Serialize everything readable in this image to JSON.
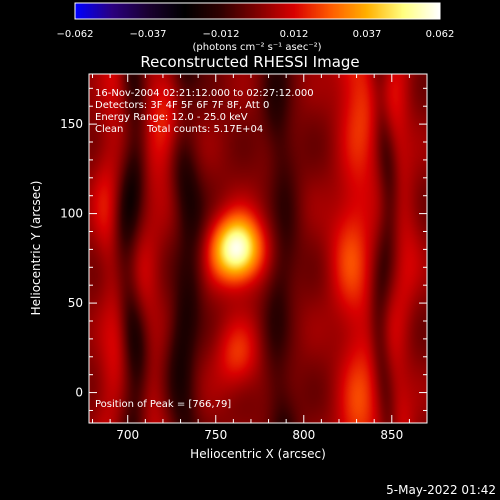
{
  "title": "Reconstructed RHESSI Image",
  "colorbar": {
    "min_label": "−0.062",
    "tick_labels": [
      "−0.062",
      "−0.037",
      "−0.012",
      "0.012",
      "0.037",
      "0.062"
    ],
    "units_label": "(photons cm⁻² s⁻¹ asec⁻²)",
    "range": [
      -0.062,
      0.062
    ],
    "colormap": [
      "#0000ff",
      "#2a0080",
      "#1a0030",
      "#000000",
      "#300000",
      "#800000",
      "#d80000",
      "#ff5a00",
      "#ffb000",
      "#ffff80",
      "#ffffff"
    ]
  },
  "info": {
    "line1": "16-Nov-2004 02:21:12.000 to 02:27:12.000",
    "line2": "Detectors: 3F 4F 5F 6F 7F 8F, Att 0",
    "line3": "Energy Range: 12.0 - 25.0 keV",
    "line4_a": "Clean",
    "line4_b": "Total counts: 5.17E+04"
  },
  "peak_label": "Position of Peak = [766,79]",
  "axes": {
    "xlabel": "Heliocentric X (arcsec)",
    "ylabel": "Heliocentric Y (arcsec)",
    "xlim": [
      678,
      870
    ],
    "ylim": [
      -17,
      178
    ],
    "xticks": [
      700,
      750,
      800,
      850
    ],
    "yticks": [
      0,
      50,
      100,
      150
    ]
  },
  "footer_timestamp": "5-May-2022 01:42",
  "chart_data": {
    "type": "heatmap",
    "title": "Reconstructed RHESSI Image",
    "xlabel": "Heliocentric X (arcsec)",
    "ylabel": "Heliocentric Y (arcsec)",
    "xlim": [
      678,
      870
    ],
    "ylim": [
      -17,
      178
    ],
    "zlim": [
      -0.062,
      0.062
    ],
    "peak": {
      "x": 766,
      "y": 79,
      "value": 0.062
    },
    "features": [
      {
        "type": "source",
        "x": 762,
        "y": 80,
        "sx": 10,
        "sy": 13,
        "amp": 0.062
      },
      {
        "type": "column",
        "x": 830,
        "sx": 9,
        "amp": 0.02
      },
      {
        "type": "column",
        "x": 712,
        "sx": 7,
        "amp": 0.009
      },
      {
        "type": "column",
        "x": 690,
        "sx": 6,
        "amp": 0.012
      },
      {
        "type": "column",
        "x": 856,
        "sx": 6,
        "amp": 0.011
      },
      {
        "type": "column",
        "x": 702,
        "sx": 5,
        "amp": -0.02
      },
      {
        "type": "column",
        "x": 733,
        "sx": 6,
        "amp": -0.02
      },
      {
        "type": "column",
        "x": 787,
        "sx": 6,
        "amp": -0.014
      },
      {
        "type": "column",
        "x": 846,
        "sx": 4,
        "amp": -0.014
      },
      {
        "type": "blob",
        "x": 725,
        "y": 148,
        "sx": 7,
        "sy": 18,
        "amp": 0.02
      },
      {
        "type": "blob",
        "x": 762,
        "y": 20,
        "sx": 9,
        "sy": 14,
        "amp": 0.018
      }
    ]
  }
}
